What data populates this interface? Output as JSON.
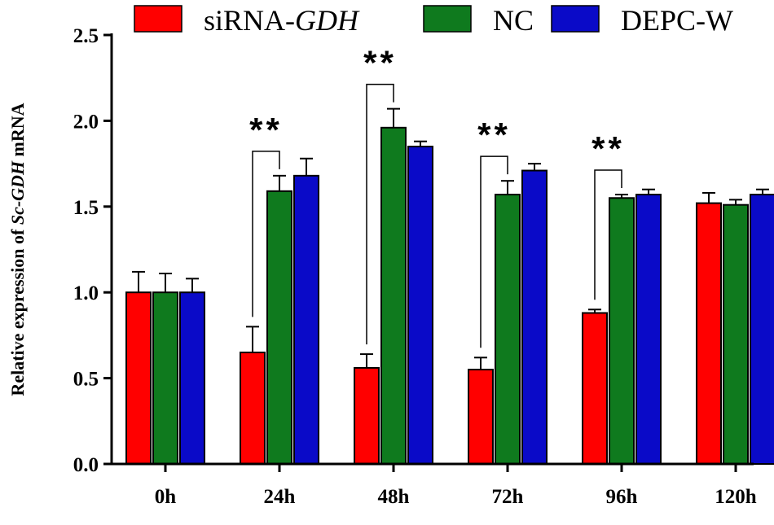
{
  "chart_data": {
    "type": "bar",
    "title": "",
    "xlabel": "",
    "ylabel_parts": [
      "Relative expression of ",
      "Sc-GDH",
      " mRNA"
    ],
    "ylim": [
      0,
      2.5
    ],
    "yticks": [
      "0.0",
      "0.5",
      "1.0",
      "1.5",
      "2.0",
      "2.5"
    ],
    "categories": [
      "0h",
      "24h",
      "48h",
      "72h",
      "96h",
      "120h"
    ],
    "series": [
      {
        "name_parts": [
          "siRNA-",
          "GDH"
        ],
        "color": "#ff0000",
        "values": [
          1.0,
          0.65,
          0.56,
          0.55,
          0.88,
          1.52
        ],
        "errors": [
          0.12,
          0.15,
          0.08,
          0.07,
          0.02,
          0.06
        ]
      },
      {
        "name_parts": [
          "NC",
          ""
        ],
        "color": "#0f7a1e",
        "values": [
          1.0,
          1.59,
          1.96,
          1.57,
          1.55,
          1.51
        ],
        "errors": [
          0.11,
          0.09,
          0.11,
          0.08,
          0.02,
          0.03
        ]
      },
      {
        "name_parts": [
          "DEPC-W",
          ""
        ],
        "color": "#0a0ac8",
        "values": [
          1.0,
          1.68,
          1.85,
          1.71,
          1.57,
          1.57
        ],
        "errors": [
          0.08,
          0.1,
          0.03,
          0.04,
          0.03,
          0.03
        ]
      }
    ],
    "legend_placement": "top",
    "annotations": [
      {
        "category": "24h",
        "label": "**"
      },
      {
        "category": "48h",
        "label": "**"
      },
      {
        "category": "72h",
        "label": "**"
      },
      {
        "category": "96h",
        "label": "**"
      }
    ]
  }
}
